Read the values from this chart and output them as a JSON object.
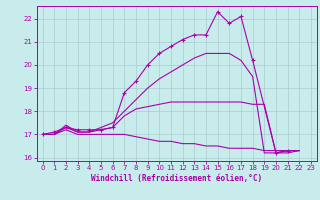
{
  "bg_color": "#c8ecec",
  "line_color": "#aa00aa",
  "grid_color": "#aacccc",
  "xlabel": "Windchill (Refroidissement éolien,°C)",
  "xlabel_color": "#aa00aa",
  "tick_color": "#aa00aa",
  "xlim": [
    -0.5,
    23.5
  ],
  "ylim": [
    15.85,
    22.55
  ],
  "yticks": [
    16,
    17,
    18,
    19,
    20,
    21,
    22
  ],
  "xticks": [
    0,
    1,
    2,
    3,
    4,
    5,
    6,
    7,
    8,
    9,
    10,
    11,
    12,
    13,
    14,
    15,
    16,
    17,
    18,
    19,
    20,
    21,
    22,
    23
  ],
  "lines": [
    {
      "x": [
        0,
        1,
        2,
        3,
        4,
        5,
        6,
        7,
        8,
        9,
        10,
        11,
        12,
        13,
        14,
        15,
        16,
        17,
        18,
        20,
        21
      ],
      "y": [
        17.0,
        17.1,
        17.3,
        17.2,
        17.2,
        17.2,
        17.3,
        18.8,
        19.3,
        20.0,
        20.5,
        20.8,
        21.1,
        21.3,
        21.3,
        22.3,
        21.8,
        22.1,
        20.2,
        16.2,
        16.3
      ],
      "marker": true,
      "marker_size": 3.0
    },
    {
      "x": [
        0,
        1,
        2,
        3,
        4,
        5,
        6,
        7,
        8,
        9,
        10,
        11,
        12,
        13,
        14,
        15,
        16,
        17,
        18,
        19,
        20,
        21,
        22
      ],
      "y": [
        17.0,
        17.0,
        17.4,
        17.1,
        17.1,
        17.3,
        17.5,
        18.0,
        18.5,
        19.0,
        19.4,
        19.7,
        20.0,
        20.3,
        20.5,
        20.5,
        20.5,
        20.2,
        19.5,
        16.2,
        16.2,
        16.3,
        16.3
      ],
      "marker": false,
      "marker_size": 0
    },
    {
      "x": [
        0,
        1,
        2,
        3,
        4,
        5,
        6,
        7,
        8,
        9,
        10,
        11,
        12,
        13,
        14,
        15,
        16,
        17,
        18,
        19,
        20,
        21,
        22
      ],
      "y": [
        17.0,
        17.0,
        17.3,
        17.1,
        17.1,
        17.2,
        17.3,
        17.8,
        18.1,
        18.2,
        18.3,
        18.4,
        18.4,
        18.4,
        18.4,
        18.4,
        18.4,
        18.4,
        18.3,
        18.3,
        16.2,
        16.2,
        16.3
      ],
      "marker": false,
      "marker_size": 0
    },
    {
      "x": [
        0,
        1,
        2,
        3,
        4,
        5,
        6,
        7,
        8,
        9,
        10,
        11,
        12,
        13,
        14,
        15,
        16,
        17,
        18,
        19,
        20,
        21,
        22
      ],
      "y": [
        17.0,
        17.0,
        17.2,
        17.0,
        17.0,
        17.0,
        17.0,
        17.0,
        16.9,
        16.8,
        16.7,
        16.7,
        16.6,
        16.6,
        16.5,
        16.5,
        16.4,
        16.4,
        16.4,
        16.3,
        16.3,
        16.3,
        16.3
      ],
      "marker": false,
      "marker_size": 0
    }
  ]
}
